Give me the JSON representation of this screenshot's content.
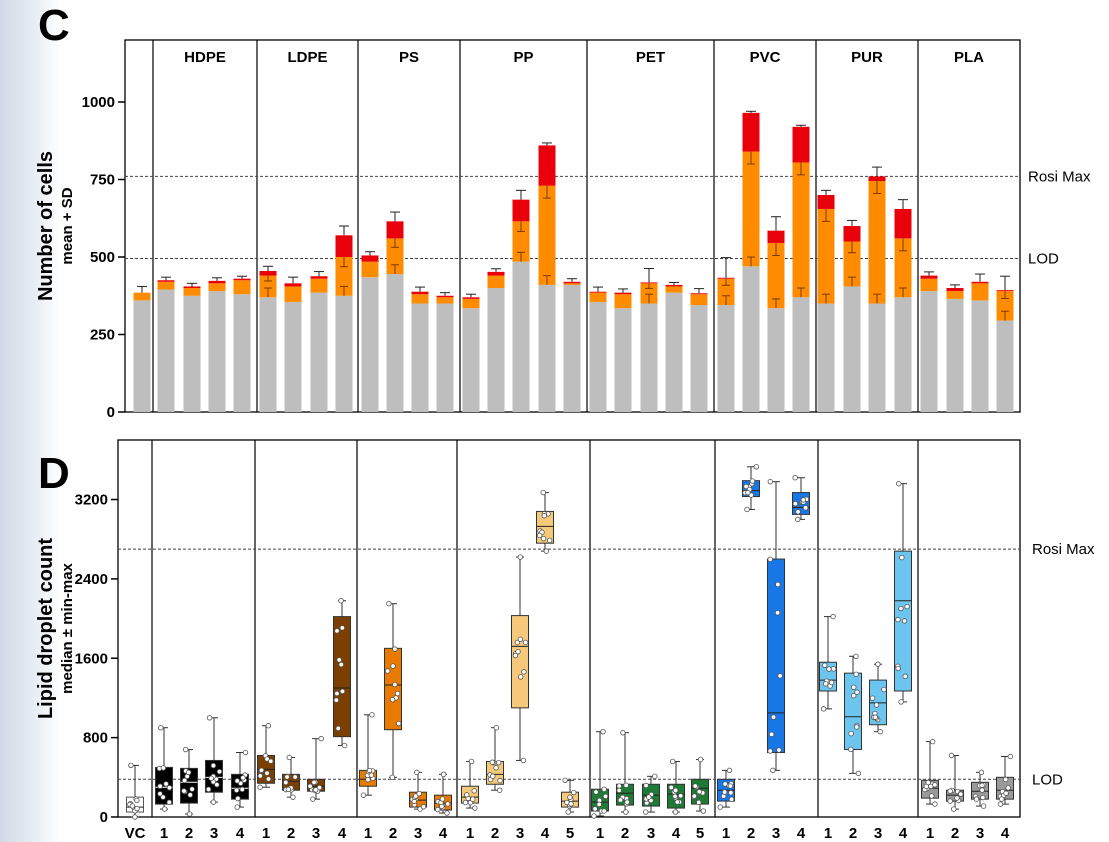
{
  "chart_data": [
    {
      "panel": "C",
      "type": "bar",
      "stacked": true,
      "ylabel": "Number of cells",
      "ylabel_sub": "mean + SD",
      "ylim": [
        0,
        1200
      ],
      "yticks": [
        "0",
        "250",
        "500",
        "750",
        "1000"
      ],
      "ytick_values": [
        0,
        250,
        500,
        750,
        1000
      ],
      "reference_lines": [
        {
          "label": "Rosi Max",
          "value": 760
        },
        {
          "label": "LOD",
          "value": 495
        }
      ],
      "groups": [
        {
          "name": "",
          "labels": [
            "VC"
          ],
          "bars": [
            [
              360,
              25,
              0,
              20
            ]
          ]
        },
        {
          "name": "HDPE",
          "labels": [
            "1",
            "2",
            "3",
            "4"
          ],
          "bars": [
            [
              395,
              25,
              5,
              10
            ],
            [
              375,
              25,
              5,
              10
            ],
            [
              390,
              25,
              8,
              10
            ],
            [
              380,
              45,
              5,
              8
            ]
          ]
        },
        {
          "name": "LDPE",
          "labels": [
            "1",
            "2",
            "3",
            "4"
          ],
          "bars": [
            [
              370,
              70,
              15,
              15
            ],
            [
              355,
              50,
              10,
              20
            ],
            [
              385,
              45,
              8,
              15
            ],
            [
              375,
              125,
              70,
              30
            ]
          ]
        },
        {
          "name": "PS",
          "labels": [
            "1",
            "2",
            "3",
            "4"
          ],
          "bars": [
            [
              435,
              50,
              20,
              12
            ],
            [
              445,
              115,
              55,
              30
            ],
            [
              350,
              30,
              8,
              15
            ],
            [
              350,
              20,
              5,
              10
            ]
          ]
        },
        {
          "name": "PP",
          "labels": [
            "1",
            "2",
            "3",
            "4",
            "5"
          ],
          "bars": [
            [
              335,
              30,
              5,
              10
            ],
            [
              400,
              40,
              12,
              10
            ],
            [
              485,
              130,
              70,
              30
            ],
            [
              410,
              320,
              130,
              8
            ],
            [
              410,
              5,
              5,
              10
            ]
          ]
        },
        {
          "name": "PET",
          "labels": [
            "1",
            "2",
            "3",
            "4",
            "5"
          ],
          "bars": [
            [
              355,
              30,
              3,
              15
            ],
            [
              335,
              45,
              5,
              12
            ],
            [
              350,
              65,
              3,
              45
            ],
            [
              385,
              20,
              5,
              8
            ],
            [
              345,
              35,
              3,
              15
            ]
          ]
        },
        {
          "name": "PVC",
          "labels": [
            "1",
            "2",
            "3",
            "4"
          ],
          "bars": [
            [
              345,
              85,
              3,
              65
            ],
            [
              470,
              370,
              125,
              5
            ],
            [
              335,
              210,
              40,
              45
            ],
            [
              370,
              435,
              115,
              5
            ]
          ]
        },
        {
          "name": "PUR",
          "labels": [
            "1",
            "2",
            "3",
            "4"
          ],
          "bars": [
            [
              350,
              305,
              45,
              15
            ],
            [
              405,
              145,
              50,
              18
            ],
            [
              350,
              395,
              15,
              30
            ],
            [
              370,
              190,
              95,
              30
            ]
          ]
        },
        {
          "name": "PLA",
          "labels": [
            "1",
            "2",
            "3",
            "4"
          ],
          "bars": [
            [
              390,
              40,
              10,
              12
            ],
            [
              365,
              25,
              10,
              10
            ],
            [
              360,
              55,
              5,
              25
            ],
            [
              295,
              95,
              3,
              45
            ]
          ]
        }
      ],
      "bar_segments": [
        "base (grey)",
        "increase (orange)",
        "top (red)"
      ],
      "colors": {
        "base": "#bebebe",
        "mid": "#ff8c00",
        "top": "#e8000b"
      }
    },
    {
      "panel": "D",
      "type": "box",
      "ylabel": "Lipid droplet count",
      "ylabel_sub": "median ± min-max",
      "ylim": [
        0,
        3800
      ],
      "yticks": [
        "0",
        "800",
        "1600",
        "2400",
        "3200"
      ],
      "ytick_values": [
        0,
        800,
        1600,
        2400,
        3200
      ],
      "reference_lines": [
        {
          "label": "Rosi Max",
          "value": 2700
        },
        {
          "label": "LOD",
          "value": 380
        }
      ],
      "groups": [
        {
          "name": "",
          "labels": [
            "VC"
          ],
          "color": "#ffffff",
          "boxes": [
            [
              0,
              50,
              100,
              200,
              520
            ]
          ]
        },
        {
          "name": "HDPE",
          "labels": [
            "1",
            "2",
            "3",
            "4"
          ],
          "color": "#000000",
          "boxes": [
            [
              80,
              130,
              300,
              500,
              900
            ],
            [
              30,
              140,
              350,
              490,
              680
            ],
            [
              150,
              250,
              400,
              570,
              1000
            ],
            [
              100,
              180,
              290,
              430,
              650
            ]
          ]
        },
        {
          "name": "LDPE",
          "labels": [
            "1",
            "2",
            "3",
            "4"
          ],
          "color": "#7b3f00",
          "boxes": [
            [
              300,
              340,
              480,
              620,
              920
            ],
            [
              200,
              270,
              360,
              430,
              600
            ],
            [
              180,
              260,
              310,
              380,
              790
            ],
            [
              720,
              810,
              1300,
              2020,
              2180
            ]
          ]
        },
        {
          "name": "PS",
          "labels": [
            "1",
            "2",
            "3",
            "4"
          ],
          "color": "#e97a00",
          "boxes": [
            [
              220,
              310,
              380,
              470,
              1030
            ],
            [
              400,
              880,
              1330,
              1700,
              2150
            ],
            [
              80,
              100,
              170,
              250,
              450
            ],
            [
              40,
              70,
              140,
              220,
              430
            ]
          ]
        },
        {
          "name": "PP",
          "labels": [
            "1",
            "2",
            "3",
            "4",
            "5"
          ],
          "color": "#f6c97a",
          "boxes": [
            [
              90,
              140,
              200,
              310,
              560
            ],
            [
              270,
              330,
              430,
              560,
              900
            ],
            [
              570,
              1100,
              1720,
              2030,
              2620
            ],
            [
              2680,
              2760,
              2930,
              3080,
              3270
            ],
            [
              50,
              100,
              160,
              250,
              370
            ]
          ]
        },
        {
          "name": "PET",
          "labels": [
            "1",
            "2",
            "3",
            "4",
            "5"
          ],
          "color": "#1e7b35",
          "boxes": [
            [
              10,
              60,
              150,
              280,
              860
            ],
            [
              50,
              120,
              240,
              330,
              850
            ],
            [
              50,
              110,
              220,
              330,
              410
            ],
            [
              50,
              90,
              230,
              330,
              560
            ],
            [
              60,
              130,
              290,
              380,
              580
            ]
          ]
        },
        {
          "name": "PVC",
          "labels": [
            "1",
            "2",
            "3",
            "4"
          ],
          "color": "#1877e6",
          "boxes": [
            [
              100,
              160,
              270,
              380,
              470
            ],
            [
              3100,
              3230,
              3290,
              3390,
              3530
            ],
            [
              470,
              650,
              1050,
              2600,
              3380
            ],
            [
              3000,
              3050,
              3120,
              3270,
              3420
            ]
          ]
        },
        {
          "name": "PUR",
          "labels": [
            "1",
            "2",
            "3",
            "4"
          ],
          "color": "#6cc5ef",
          "boxes": [
            [
              1090,
              1270,
              1380,
              1560,
              2020
            ],
            [
              440,
              680,
              1010,
              1450,
              1620
            ],
            [
              860,
              930,
              1150,
              1380,
              1540
            ],
            [
              1160,
              1270,
              2180,
              2680,
              3360
            ]
          ]
        },
        {
          "name": "PLA",
          "labels": [
            "1",
            "2",
            "3",
            "4"
          ],
          "color": "#9a9a9a",
          "boxes": [
            [
              130,
              190,
              290,
              370,
              760
            ],
            [
              80,
              160,
              220,
              270,
              620
            ],
            [
              110,
              180,
              260,
              350,
              450
            ],
            [
              130,
              180,
              270,
              400,
              610
            ]
          ]
        }
      ]
    }
  ]
}
